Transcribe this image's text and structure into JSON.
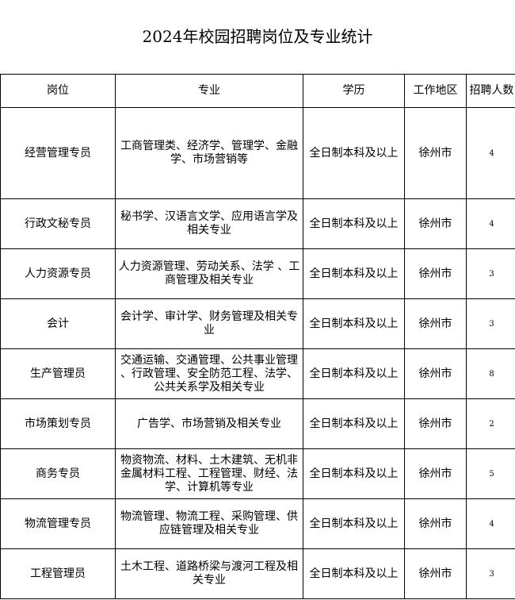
{
  "title": "2024年校园招聘岗位及专业统计",
  "headers": [
    "岗位",
    "专业",
    "学历",
    "工作地区",
    "招聘人数"
  ],
  "rows": [
    {
      "position": "经营管理专员",
      "major": "工商管理类、经济学、管理学、金融\n学、市场营销等",
      "education": "全日制本科及以上",
      "location": "徐州市",
      "count": "4"
    },
    {
      "position": "行政文秘专员",
      "major": "秘书学、汉语言文学、应用语言学及\n相关专业",
      "education": "全日制本科及以上",
      "location": "徐州市",
      "count": "4"
    },
    {
      "position": "人力资源专员",
      "major": "人力资源管理、劳动关系、法学 、工\n商管理及相关专业",
      "education": "全日制本科及以上",
      "location": "徐州市",
      "count": "3"
    },
    {
      "position": "会计",
      "major": "会计学、审计学、财务管理及相关专\n业",
      "education": "全日制本科及以上",
      "location": "徐州市",
      "count": "3"
    },
    {
      "position": "生产管理员",
      "major": "交通运输、交通管理、公共事业管理\n、行政管理、安全防范工程、法学、\n公共关系学及相关专业",
      "education": "全日制本科及以上",
      "location": "徐州市",
      "count": "8"
    },
    {
      "position": "市场策划专员",
      "major": "广告学、市场营销及相关专业",
      "education": "全日制本科及以上",
      "location": "徐州市",
      "count": "2"
    },
    {
      "position": "商务专员",
      "major": "物资物流、材料、土木建筑、无机非\n金属材料工程、工程管理、财经、法\n学、计算机等专业",
      "education": "全日制本科及以上",
      "location": "徐州市",
      "count": "5"
    },
    {
      "position": "物流管理专员",
      "major": "物流管理、物流工程、采购管理、供\n应链管理及相关专业",
      "education": "全日制本科及以上",
      "location": "徐州市",
      "count": "4"
    },
    {
      "position": "工程管理员",
      "major": "土木工程、道路桥梁与渡河工程及相\n关专业",
      "education": "全日制本科及以上",
      "location": "徐州市",
      "count": "3"
    }
  ]
}
